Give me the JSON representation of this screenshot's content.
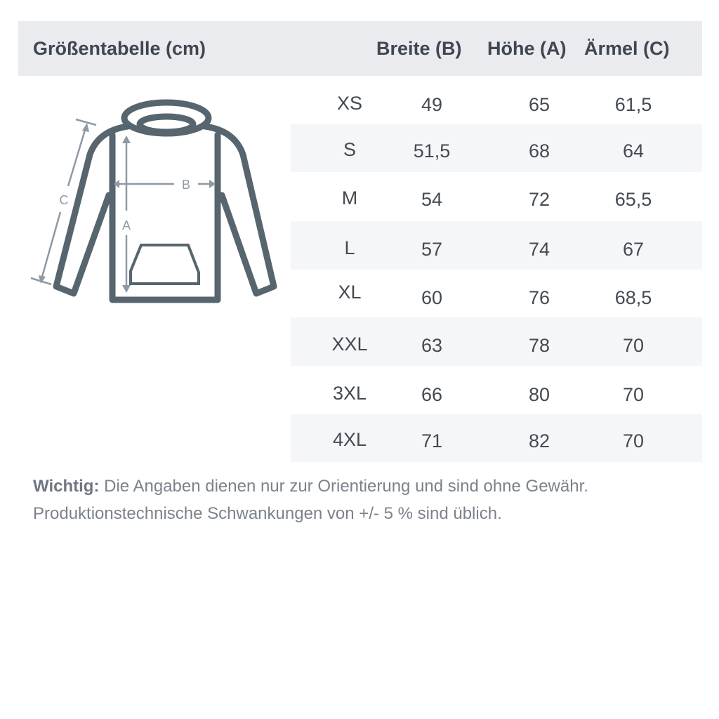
{
  "header": {
    "title": "Größentabelle (cm)",
    "columns": [
      "Breite (B)",
      "Höhe (A)",
      "Ärmel (C)"
    ]
  },
  "diagram": {
    "labels": {
      "a": "A",
      "b": "B",
      "c": "C"
    },
    "line_color": "#56656e",
    "arrow_color": "#8f99a3"
  },
  "rows": [
    {
      "size": "XS",
      "b": "49",
      "a": "65",
      "c": "61,5"
    },
    {
      "size": "S",
      "b": "51,5",
      "a": "68",
      "c": "64"
    },
    {
      "size": "M",
      "b": "54",
      "a": "72",
      "c": "65,5"
    },
    {
      "size": "L",
      "b": "57",
      "a": "74",
      "c": "67"
    },
    {
      "size": "XL",
      "b": "60",
      "a": "76",
      "c": "68,5"
    },
    {
      "size": "XXL",
      "b": "63",
      "a": "78",
      "c": "70"
    },
    {
      "size": "3XL",
      "b": "66",
      "a": "80",
      "c": "70"
    },
    {
      "size": "4XL",
      "b": "71",
      "a": "82",
      "c": "70"
    }
  ],
  "note": {
    "bold": "Wichtig:",
    "line1": " Die Angaben dienen nur zur Orientierung und sind ohne Gewähr.",
    "line2": "Produktionstechnische Schwankungen von +/- 5 % sind üblich."
  }
}
